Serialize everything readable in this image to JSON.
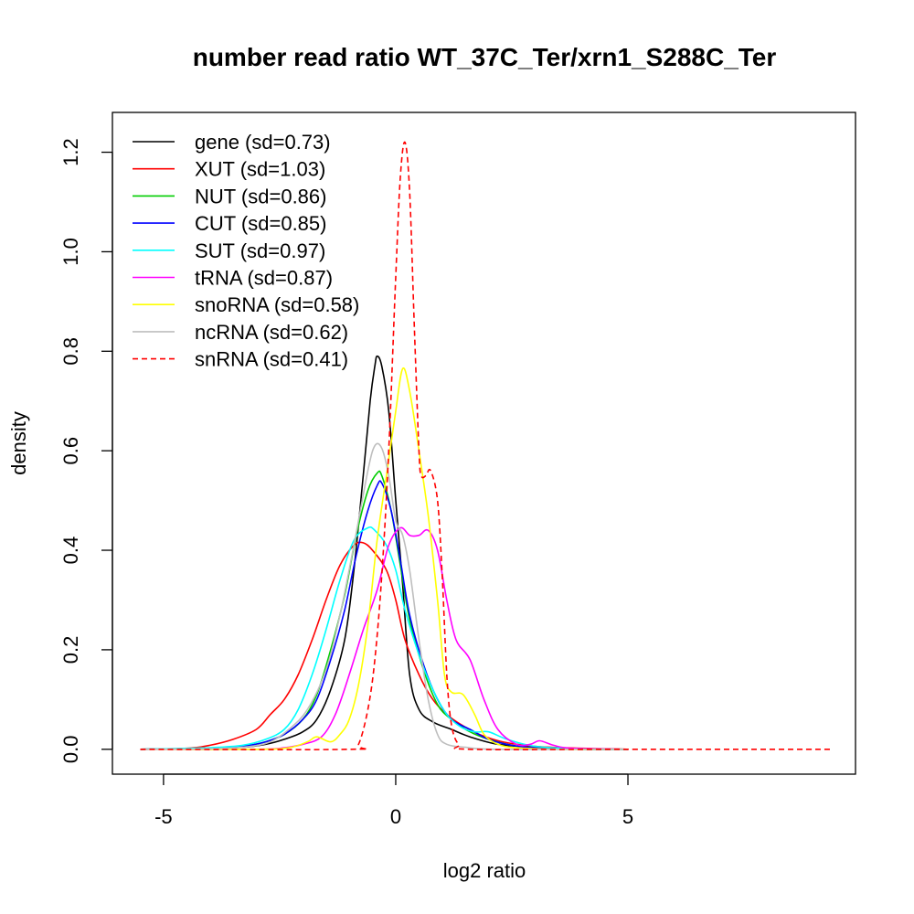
{
  "chart_data": {
    "type": "line",
    "title": "number read ratio WT_37C_Ter/xrn1_S288C_Ter",
    "xlabel": "log2 ratio",
    "ylabel": "density",
    "xlim": [
      -6.1,
      9.9
    ],
    "ylim": [
      -0.05,
      1.28
    ],
    "xticks": [
      -5,
      0,
      5
    ],
    "xtick_labels": [
      "-5",
      "0",
      "5"
    ],
    "yticks": [
      0.0,
      0.2,
      0.4,
      0.6,
      0.8,
      1.0,
      1.2
    ],
    "ytick_labels": [
      "0.0",
      "0.2",
      "0.4",
      "0.6",
      "0.8",
      "1.0",
      "1.2"
    ],
    "grid": false,
    "legend_position": "top-left",
    "series": [
      {
        "name": "gene (sd=0.73)",
        "color": "#000000",
        "dash": false,
        "points": [
          [
            -5.5,
            0
          ],
          [
            -4,
            0.002
          ],
          [
            -3.3,
            0.004
          ],
          [
            -2.8,
            0.01
          ],
          [
            -2.4,
            0.02
          ],
          [
            -2,
            0.035
          ],
          [
            -1.7,
            0.06
          ],
          [
            -1.4,
            0.12
          ],
          [
            -1.1,
            0.22
          ],
          [
            -0.9,
            0.36
          ],
          [
            -0.7,
            0.55
          ],
          [
            -0.55,
            0.7
          ],
          [
            -0.45,
            0.77
          ],
          [
            -0.4,
            0.79
          ],
          [
            -0.3,
            0.77
          ],
          [
            -0.15,
            0.68
          ],
          [
            0,
            0.5
          ],
          [
            0.15,
            0.33
          ],
          [
            0.3,
            0.15
          ],
          [
            0.5,
            0.08
          ],
          [
            0.8,
            0.055
          ],
          [
            1.2,
            0.04
          ],
          [
            1.6,
            0.025
          ],
          [
            2.2,
            0.01
          ],
          [
            3,
            0.004
          ],
          [
            4,
            0.001
          ],
          [
            5,
            0
          ]
        ]
      },
      {
        "name": "XUT (sd=1.03)",
        "color": "#ff0000",
        "dash": false,
        "points": [
          [
            -5.5,
            0
          ],
          [
            -4.5,
            0.002
          ],
          [
            -4,
            0.008
          ],
          [
            -3.5,
            0.02
          ],
          [
            -3,
            0.04
          ],
          [
            -2.7,
            0.07
          ],
          [
            -2.4,
            0.1
          ],
          [
            -2.1,
            0.15
          ],
          [
            -1.8,
            0.22
          ],
          [
            -1.5,
            0.3
          ],
          [
            -1.2,
            0.37
          ],
          [
            -0.9,
            0.41
          ],
          [
            -0.7,
            0.415
          ],
          [
            -0.5,
            0.4
          ],
          [
            -0.2,
            0.36
          ],
          [
            0,
            0.3
          ],
          [
            0.2,
            0.22
          ],
          [
            0.5,
            0.15
          ],
          [
            0.8,
            0.1
          ],
          [
            1.1,
            0.07
          ],
          [
            1.4,
            0.05
          ],
          [
            1.8,
            0.03
          ],
          [
            2.3,
            0.015
          ],
          [
            3,
            0.006
          ],
          [
            4,
            0.002
          ],
          [
            5,
            0
          ]
        ]
      },
      {
        "name": "NUT (sd=0.86)",
        "color": "#00cd00",
        "dash": false,
        "points": [
          [
            -5.5,
            0
          ],
          [
            -4,
            0.002
          ],
          [
            -3.3,
            0.006
          ],
          [
            -2.8,
            0.015
          ],
          [
            -2.4,
            0.03
          ],
          [
            -2,
            0.06
          ],
          [
            -1.7,
            0.11
          ],
          [
            -1.4,
            0.2
          ],
          [
            -1.1,
            0.31
          ],
          [
            -0.85,
            0.43
          ],
          [
            -0.6,
            0.52
          ],
          [
            -0.4,
            0.555
          ],
          [
            -0.3,
            0.55
          ],
          [
            -0.1,
            0.48
          ],
          [
            0.1,
            0.37
          ],
          [
            0.3,
            0.26
          ],
          [
            0.6,
            0.16
          ],
          [
            0.9,
            0.09
          ],
          [
            1.2,
            0.06
          ],
          [
            1.6,
            0.035
          ],
          [
            2,
            0.02
          ],
          [
            2.5,
            0.008
          ],
          [
            3,
            0.003
          ],
          [
            4,
            0
          ],
          [
            5,
            0
          ]
        ]
      },
      {
        "name": "CUT (sd=0.85)",
        "color": "#0000ff",
        "dash": false,
        "points": [
          [
            -5.5,
            0
          ],
          [
            -4,
            0.002
          ],
          [
            -3.3,
            0.006
          ],
          [
            -2.8,
            0.015
          ],
          [
            -2.4,
            0.03
          ],
          [
            -2,
            0.06
          ],
          [
            -1.7,
            0.1
          ],
          [
            -1.4,
            0.18
          ],
          [
            -1.1,
            0.28
          ],
          [
            -0.85,
            0.39
          ],
          [
            -0.6,
            0.48
          ],
          [
            -0.4,
            0.53
          ],
          [
            -0.3,
            0.535
          ],
          [
            -0.1,
            0.48
          ],
          [
            0.1,
            0.38
          ],
          [
            0.3,
            0.27
          ],
          [
            0.6,
            0.17
          ],
          [
            0.9,
            0.1
          ],
          [
            1.2,
            0.06
          ],
          [
            1.6,
            0.04
          ],
          [
            2,
            0.02
          ],
          [
            2.5,
            0.008
          ],
          [
            3,
            0.003
          ],
          [
            4,
            0
          ],
          [
            5,
            0
          ]
        ]
      },
      {
        "name": "SUT (sd=0.97)",
        "color": "#00ffff",
        "dash": false,
        "points": [
          [
            -5.5,
            0
          ],
          [
            -4,
            0.003
          ],
          [
            -3.3,
            0.008
          ],
          [
            -2.8,
            0.02
          ],
          [
            -2.4,
            0.04
          ],
          [
            -2.1,
            0.08
          ],
          [
            -1.8,
            0.15
          ],
          [
            -1.5,
            0.24
          ],
          [
            -1.2,
            0.34
          ],
          [
            -0.9,
            0.42
          ],
          [
            -0.6,
            0.445
          ],
          [
            -0.45,
            0.44
          ],
          [
            -0.2,
            0.41
          ],
          [
            0,
            0.36
          ],
          [
            0.2,
            0.28
          ],
          [
            0.5,
            0.19
          ],
          [
            0.8,
            0.12
          ],
          [
            1.1,
            0.07
          ],
          [
            1.4,
            0.045
          ],
          [
            1.7,
            0.035
          ],
          [
            2,
            0.035
          ],
          [
            2.4,
            0.02
          ],
          [
            3,
            0.006
          ],
          [
            4,
            0.001
          ],
          [
            5,
            0
          ]
        ]
      },
      {
        "name": "tRNA (sd=0.87)",
        "color": "#ff00ff",
        "dash": false,
        "points": [
          [
            -5.5,
            0
          ],
          [
            -3,
            0
          ],
          [
            -2.4,
            0.003
          ],
          [
            -2,
            0.01
          ],
          [
            -1.6,
            0.025
          ],
          [
            -1.3,
            0.07
          ],
          [
            -1,
            0.15
          ],
          [
            -0.7,
            0.24
          ],
          [
            -0.4,
            0.32
          ],
          [
            -0.15,
            0.41
          ],
          [
            0.1,
            0.445
          ],
          [
            0.3,
            0.43
          ],
          [
            0.5,
            0.43
          ],
          [
            0.7,
            0.44
          ],
          [
            0.9,
            0.4
          ],
          [
            1.1,
            0.3
          ],
          [
            1.3,
            0.22
          ],
          [
            1.6,
            0.18
          ],
          [
            1.9,
            0.1
          ],
          [
            2.2,
            0.04
          ],
          [
            2.6,
            0.01
          ],
          [
            2.9,
            0.01
          ],
          [
            3.1,
            0.017
          ],
          [
            3.4,
            0.008
          ],
          [
            3.8,
            0.002
          ],
          [
            5,
            0
          ]
        ]
      },
      {
        "name": "snoRNA (sd=0.58)",
        "color": "#ffff00",
        "dash": false,
        "points": [
          [
            -5.5,
            0
          ],
          [
            -3,
            0
          ],
          [
            -2.3,
            0.003
          ],
          [
            -1.9,
            0.015
          ],
          [
            -1.7,
            0.025
          ],
          [
            -1.4,
            0.015
          ],
          [
            -1.2,
            0.03
          ],
          [
            -1,
            0.06
          ],
          [
            -0.8,
            0.13
          ],
          [
            -0.6,
            0.25
          ],
          [
            -0.4,
            0.42
          ],
          [
            -0.2,
            0.55
          ],
          [
            0,
            0.68
          ],
          [
            0.15,
            0.765
          ],
          [
            0.3,
            0.72
          ],
          [
            0.5,
            0.6
          ],
          [
            0.7,
            0.47
          ],
          [
            0.9,
            0.3
          ],
          [
            1.05,
            0.15
          ],
          [
            1.2,
            0.115
          ],
          [
            1.45,
            0.11
          ],
          [
            1.7,
            0.07
          ],
          [
            1.9,
            0.03
          ],
          [
            2.2,
            0.01
          ],
          [
            2.6,
            0.003
          ],
          [
            3.5,
            0
          ],
          [
            5,
            0
          ]
        ]
      },
      {
        "name": "ncRNA (sd=0.62)",
        "color": "#bebebe",
        "dash": false,
        "points": [
          [
            -5.5,
            0
          ],
          [
            -4,
            0.001
          ],
          [
            -3.2,
            0.005
          ],
          [
            -2.7,
            0.015
          ],
          [
            -2.3,
            0.04
          ],
          [
            -1.9,
            0.08
          ],
          [
            -1.5,
            0.16
          ],
          [
            -1.2,
            0.27
          ],
          [
            -0.9,
            0.41
          ],
          [
            -0.6,
            0.56
          ],
          [
            -0.45,
            0.61
          ],
          [
            -0.3,
            0.605
          ],
          [
            -0.15,
            0.55
          ],
          [
            0,
            0.46
          ],
          [
            0.15,
            0.43
          ],
          [
            0.3,
            0.36
          ],
          [
            0.5,
            0.22
          ],
          [
            0.7,
            0.1
          ],
          [
            0.9,
            0.03
          ],
          [
            1.1,
            0.01
          ],
          [
            1.5,
            0.004
          ],
          [
            2.2,
            0
          ],
          [
            5,
            0
          ]
        ]
      },
      {
        "name": "snRNA (sd=0.41)",
        "color": "#ff0000",
        "dash": true,
        "points": [
          [
            -5.5,
            0
          ],
          [
            -1,
            0
          ],
          [
            -0.8,
            0.01
          ],
          [
            -0.6,
            0.08
          ],
          [
            -0.45,
            0.18
          ],
          [
            -0.3,
            0.35
          ],
          [
            -0.15,
            0.6
          ],
          [
            0,
            0.95
          ],
          [
            0.1,
            1.15
          ],
          [
            0.2,
            1.22
          ],
          [
            0.3,
            1.12
          ],
          [
            0.4,
            0.85
          ],
          [
            0.5,
            0.6
          ],
          [
            0.55,
            0.55
          ],
          [
            0.65,
            0.55
          ],
          [
            0.75,
            0.56
          ],
          [
            0.9,
            0.5
          ],
          [
            1,
            0.35
          ],
          [
            1.1,
            0.15
          ],
          [
            1.2,
            0.05
          ],
          [
            1.35,
            0.01
          ],
          [
            1.6,
            0
          ],
          [
            5,
            0
          ],
          [
            9.4,
            0
          ]
        ]
      }
    ]
  }
}
